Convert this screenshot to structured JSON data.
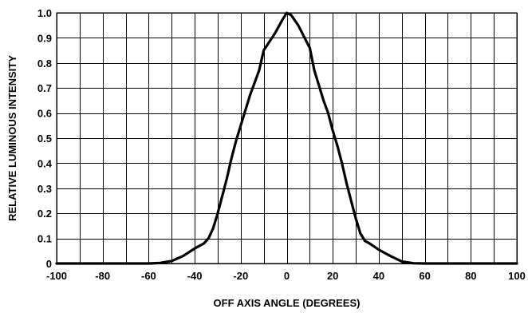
{
  "chart_data": {
    "type": "line",
    "title": "",
    "xlabel": "OFF AXIS ANGLE (DEGREES)",
    "ylabel": "RELATIVE LUMINOUS INTENSITY",
    "xlim": [
      -100,
      100
    ],
    "ylim": [
      0,
      1.0
    ],
    "grid": true,
    "legend": "none",
    "x_ticks": [
      -100,
      -90,
      -80,
      -70,
      -60,
      -50,
      -40,
      -30,
      -20,
      -10,
      0,
      10,
      20,
      30,
      40,
      50,
      60,
      70,
      80,
      90,
      100
    ],
    "x_tick_labels": [
      "-100",
      "",
      "-80",
      "",
      "-60",
      "",
      "-40",
      "",
      "-20",
      "",
      "0",
      "",
      "20",
      "",
      "40",
      "",
      "60",
      "",
      "80",
      "",
      "100"
    ],
    "y_ticks": [
      0,
      0.1,
      0.2,
      0.3,
      0.4,
      0.5,
      0.6,
      0.7,
      0.8,
      0.9,
      1.0
    ],
    "y_tick_labels": [
      "0",
      "0.1",
      "0.2",
      "0.3",
      "0.4",
      "0.5",
      "0.6",
      "0.7",
      "0.8",
      "0.9",
      "1.0"
    ],
    "series": [
      {
        "x": [
          -100,
          -60,
          -55,
          -50,
          -45,
          -40,
          -36,
          -34,
          -32,
          -30,
          -28,
          -26,
          -24,
          -22,
          -20,
          -18,
          -16,
          -14,
          -12,
          -10,
          -5,
          -2,
          0,
          2,
          5,
          10,
          12,
          14,
          16,
          18,
          20,
          22,
          24,
          26,
          28,
          30,
          32,
          34,
          36,
          40,
          45,
          50,
          55,
          60,
          100
        ],
        "y": [
          0,
          0,
          0.002,
          0.01,
          0.03,
          0.06,
          0.08,
          0.1,
          0.14,
          0.2,
          0.27,
          0.34,
          0.42,
          0.49,
          0.55,
          0.61,
          0.67,
          0.72,
          0.77,
          0.85,
          0.92,
          0.97,
          1.0,
          0.99,
          0.95,
          0.86,
          0.77,
          0.71,
          0.65,
          0.6,
          0.53,
          0.47,
          0.4,
          0.32,
          0.25,
          0.18,
          0.12,
          0.09,
          0.08,
          0.055,
          0.03,
          0.008,
          0.001,
          0,
          0
        ]
      }
    ],
    "colors": {
      "line": "#000000",
      "grid": "#000000",
      "background": "#ffffff"
    }
  }
}
